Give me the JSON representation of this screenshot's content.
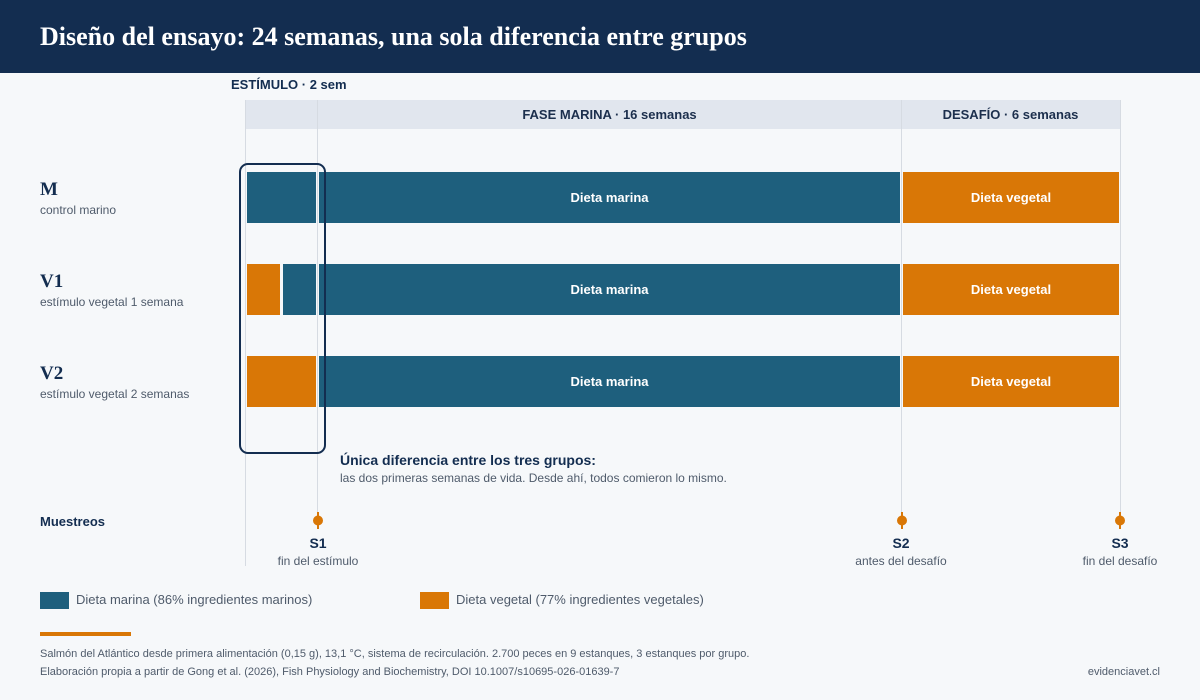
{
  "header": {
    "title": "Diseño del ensayo: 24 semanas, una sola diferencia entre grupos"
  },
  "phases": {
    "stimulus_label": "ESTÍMULO · 2 sem",
    "marine_label": "FASE MARINA  ·  16 semanas",
    "challenge_label": "DESAFÍO  ·  6 semanas"
  },
  "groups": [
    {
      "code": "M",
      "description": "control marino",
      "stimulus_weeks_vegetal": 0
    },
    {
      "code": "V1",
      "description": "estímulo vegetal 1 semana",
      "stimulus_weeks_vegetal": 1
    },
    {
      "code": "V2",
      "description": "estímulo vegetal 2 semanas",
      "stimulus_weeks_vegetal": 2
    }
  ],
  "diet_labels": {
    "marine": "Dieta marina",
    "vegetal": "Dieta vegetal"
  },
  "note": {
    "title": "Única diferencia entre los tres grupos:",
    "text": "las dos primeras semanas de vida. Desde ahí, todos comieron lo mismo."
  },
  "sampling": {
    "title": "Muestreos",
    "points": [
      {
        "code": "S1",
        "description": "fin del estímulo",
        "week": 2
      },
      {
        "code": "S2",
        "description": "antes del desafío",
        "week": 18
      },
      {
        "code": "S3",
        "description": "fin del desafío",
        "week": 24
      }
    ]
  },
  "legend": {
    "marine": "Dieta marina (86% ingredientes marinos)",
    "vegetal": "Dieta vegetal (77% ingredientes vegetales)"
  },
  "footer": {
    "line1": "Salmón del Atlántico desde primera alimentación (0,15 g), 13,1 °C, sistema de recirculación. 2.700 peces en 9 estanques, 3 estanques por grupo.",
    "line2": "Elaboración propia a partir de Gong et al. (2026), Fish Physiology and Biochemistry, DOI 10.1007/s10695-026-01639-7",
    "site": "evidenciavet.cl"
  },
  "colors": {
    "marine": "#1e5f7d",
    "vegetal": "#d97706",
    "navy": "#132d50"
  }
}
